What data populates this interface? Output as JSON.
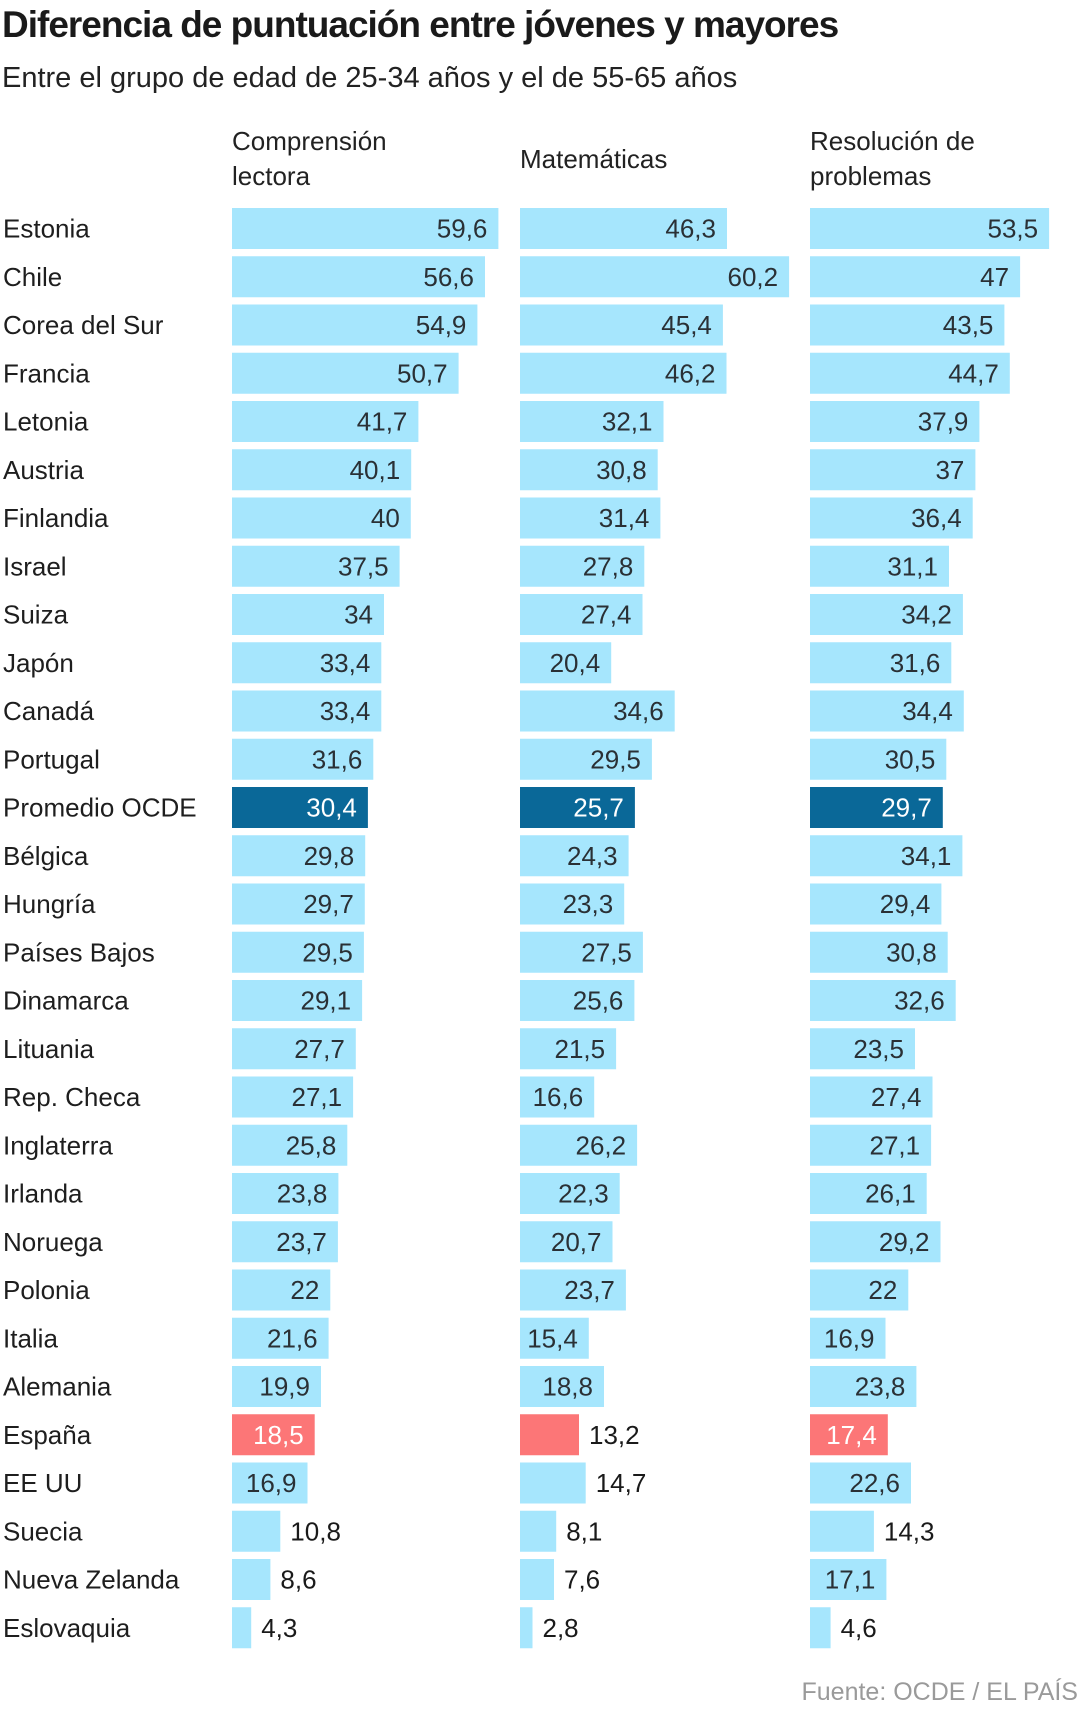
{
  "header": {
    "title": "Diferencia de puntuación entre jóvenes y mayores",
    "subtitle": "Entre el grupo de edad de 25-34 años y el de 55-65 años"
  },
  "footer": {
    "source": "Fuente: OCDE / EL PAÍS"
  },
  "colors": {
    "default_bar": "#a6e6fd",
    "average_bar": "#0a6898",
    "spain_bar": "#fc7677",
    "value_text": "#2a3035",
    "highlight_value_text": "#ffffff"
  },
  "chart_data": {
    "type": "bar",
    "orientation": "horizontal",
    "title": "Diferencia de puntuación entre jóvenes y mayores",
    "subtitle": "Entre el grupo de edad de 25-34 años y el de 55-65 años",
    "xlabel": "",
    "ylabel": "",
    "grid": false,
    "legend": "none",
    "categories": [
      "Estonia",
      "Chile",
      "Corea del Sur",
      "Francia",
      "Letonia",
      "Austria",
      "Finlandia",
      "Israel",
      "Suiza",
      "Japón",
      "Canadá",
      "Portugal",
      "Promedio OCDE",
      "Bélgica",
      "Hungría",
      "Países Bajos",
      "Dinamarca",
      "Lituania",
      "Rep. Checa",
      "Inglaterra",
      "Irlanda",
      "Noruega",
      "Polonia",
      "Italia",
      "Alemania",
      "España",
      "EE UU",
      "Suecia",
      "Nueva Zelanda",
      "Eslovaquia"
    ],
    "highlights": {
      "Promedio OCDE": "average",
      "España": "spain"
    },
    "xlim": [
      0,
      61
    ],
    "series": [
      {
        "name": "Comprensión lectora",
        "header_lines": [
          "Comprensión",
          "lectora"
        ],
        "values": [
          59.6,
          56.6,
          54.9,
          50.7,
          41.7,
          40.1,
          40,
          37.5,
          34,
          33.4,
          33.4,
          31.6,
          30.4,
          29.8,
          29.7,
          29.5,
          29.1,
          27.7,
          27.1,
          25.8,
          23.8,
          23.7,
          22,
          21.6,
          19.9,
          18.5,
          16.9,
          10.8,
          8.6,
          4.3
        ],
        "labels": [
          "59,6",
          "56,6",
          "54,9",
          "50,7",
          "41,7",
          "40,1",
          "40",
          "37,5",
          "34",
          "33,4",
          "33,4",
          "31,6",
          "30,4",
          "29,8",
          "29,7",
          "29,5",
          "29,1",
          "27,7",
          "27,1",
          "25,8",
          "23,8",
          "23,7",
          "22",
          "21,6",
          "19,9",
          "18,5",
          "16,9",
          "10,8",
          "8,6",
          "4,3"
        ]
      },
      {
        "name": "Matemáticas",
        "header_lines": [
          "Matemáticas"
        ],
        "values": [
          46.3,
          60.2,
          45.4,
          46.2,
          32.1,
          30.8,
          31.4,
          27.8,
          27.4,
          20.4,
          34.6,
          29.5,
          25.7,
          24.3,
          23.3,
          27.5,
          25.6,
          21.5,
          16.6,
          26.2,
          22.3,
          20.7,
          23.7,
          15.4,
          18.8,
          13.2,
          14.7,
          8.1,
          7.6,
          2.8
        ],
        "labels": [
          "46,3",
          "60,2",
          "45,4",
          "46,2",
          "32,1",
          "30,8",
          "31,4",
          "27,8",
          "27,4",
          "20,4",
          "34,6",
          "29,5",
          "25,7",
          "24,3",
          "23,3",
          "27,5",
          "25,6",
          "21,5",
          "16,6",
          "26,2",
          "22,3",
          "20,7",
          "23,7",
          "15,4",
          "18,8",
          "13,2",
          "14,7",
          "8,1",
          "7,6",
          "2,8"
        ]
      },
      {
        "name": "Resolución de problemas",
        "header_lines": [
          "Resolución de",
          "problemas"
        ],
        "values": [
          53.5,
          47,
          43.5,
          44.7,
          37.9,
          37,
          36.4,
          31.1,
          34.2,
          31.6,
          34.4,
          30.5,
          29.7,
          34.1,
          29.4,
          30.8,
          32.6,
          23.5,
          27.4,
          27.1,
          26.1,
          29.2,
          22,
          16.9,
          23.8,
          17.4,
          22.6,
          14.3,
          17.1,
          4.6
        ],
        "labels": [
          "53,5",
          "47",
          "43,5",
          "44,7",
          "37,9",
          "37",
          "36,4",
          "31,1",
          "34,2",
          "31,6",
          "34,4",
          "30,5",
          "29,7",
          "34,1",
          "29,4",
          "30,8",
          "32,6",
          "23,5",
          "27,4",
          "27,1",
          "26,1",
          "29,2",
          "22",
          "16,9",
          "23,8",
          "17,4",
          "22,6",
          "14,3",
          "17,1",
          "4,6"
        ]
      }
    ]
  }
}
